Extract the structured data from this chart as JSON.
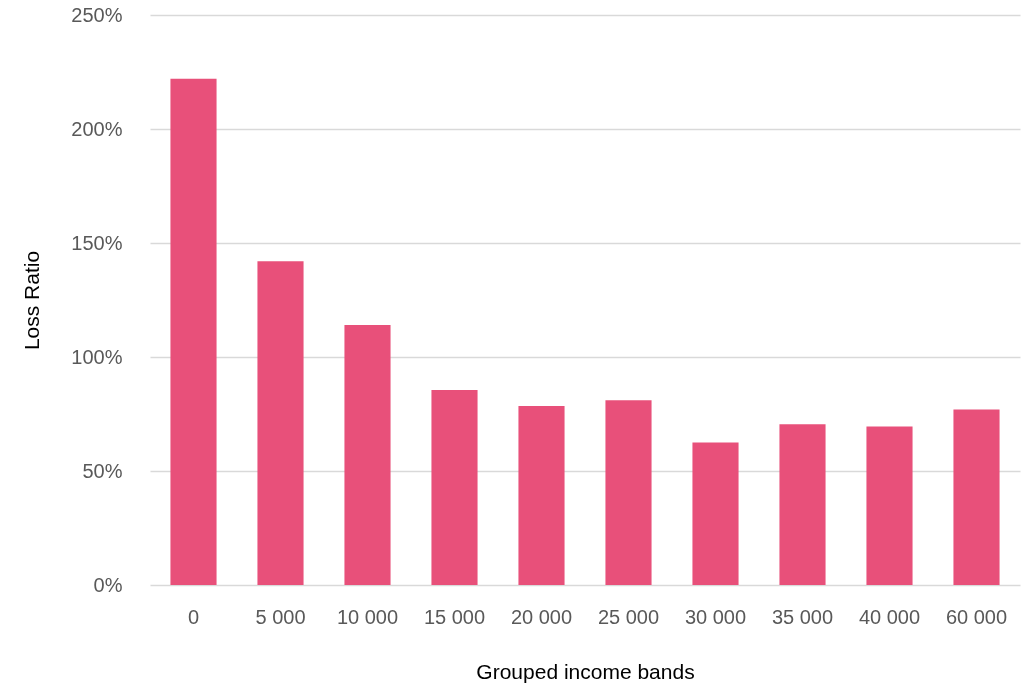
{
  "chart_data": {
    "type": "bar",
    "categories": [
      "0",
      "5 000",
      "10 000",
      "15 000",
      "20 000",
      "25 000",
      "30 000",
      "35 000",
      "40 000",
      "60 000"
    ],
    "values": [
      222,
      142,
      114,
      85.5,
      78.5,
      81,
      62.5,
      70.5,
      69.5,
      77
    ],
    "color": "#e8507a",
    "xlabel": "Grouped income bands",
    "ylabel": "Loss Ratio",
    "ylim": [
      0,
      250
    ],
    "yticks": [
      {
        "value": 0,
        "label": "0%"
      },
      {
        "value": 50,
        "label": "50%"
      },
      {
        "value": 100,
        "label": "100%"
      },
      {
        "value": 150,
        "label": "150%"
      },
      {
        "value": 200,
        "label": "200%"
      },
      {
        "value": 250,
        "label": "250%"
      }
    ],
    "grid": "y"
  }
}
